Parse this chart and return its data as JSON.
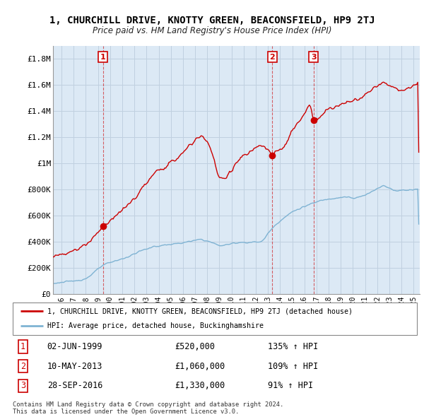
{
  "title": "1, CHURCHILL DRIVE, KNOTTY GREEN, BEACONSFIELD, HP9 2TJ",
  "subtitle": "Price paid vs. HM Land Registry's House Price Index (HPI)",
  "ylabel_ticks": [
    "£0",
    "£200K",
    "£400K",
    "£600K",
    "£800K",
    "£1M",
    "£1.2M",
    "£1.4M",
    "£1.6M",
    "£1.8M"
  ],
  "ytick_values": [
    0,
    200000,
    400000,
    600000,
    800000,
    1000000,
    1200000,
    1400000,
    1600000,
    1800000
  ],
  "ylim": [
    0,
    1900000
  ],
  "xlim_start": 1995.3,
  "xlim_end": 2025.5,
  "sale_color": "#cc0000",
  "hpi_color": "#7fb3d3",
  "dashed_color": "#cc0000",
  "plot_bg_color": "#dce9f5",
  "sale_label": "1, CHURCHILL DRIVE, KNOTTY GREEN, BEACONSFIELD, HP9 2TJ (detached house)",
  "hpi_label": "HPI: Average price, detached house, Buckinghamshire",
  "transactions": [
    {
      "num": 1,
      "date": "02-JUN-1999",
      "price": 520000,
      "year": 1999.42,
      "hpi_pct": "135% ↑ HPI"
    },
    {
      "num": 2,
      "date": "10-MAY-2013",
      "price": 1060000,
      "year": 2013.36,
      "hpi_pct": "109% ↑ HPI"
    },
    {
      "num": 3,
      "date": "28-SEP-2016",
      "price": 1330000,
      "year": 2016.75,
      "hpi_pct": "91% ↑ HPI"
    }
  ],
  "footer": "Contains HM Land Registry data © Crown copyright and database right 2024.\nThis data is licensed under the Open Government Licence v3.0.",
  "background_color": "#ffffff",
  "grid_color": "#c0d0e0"
}
